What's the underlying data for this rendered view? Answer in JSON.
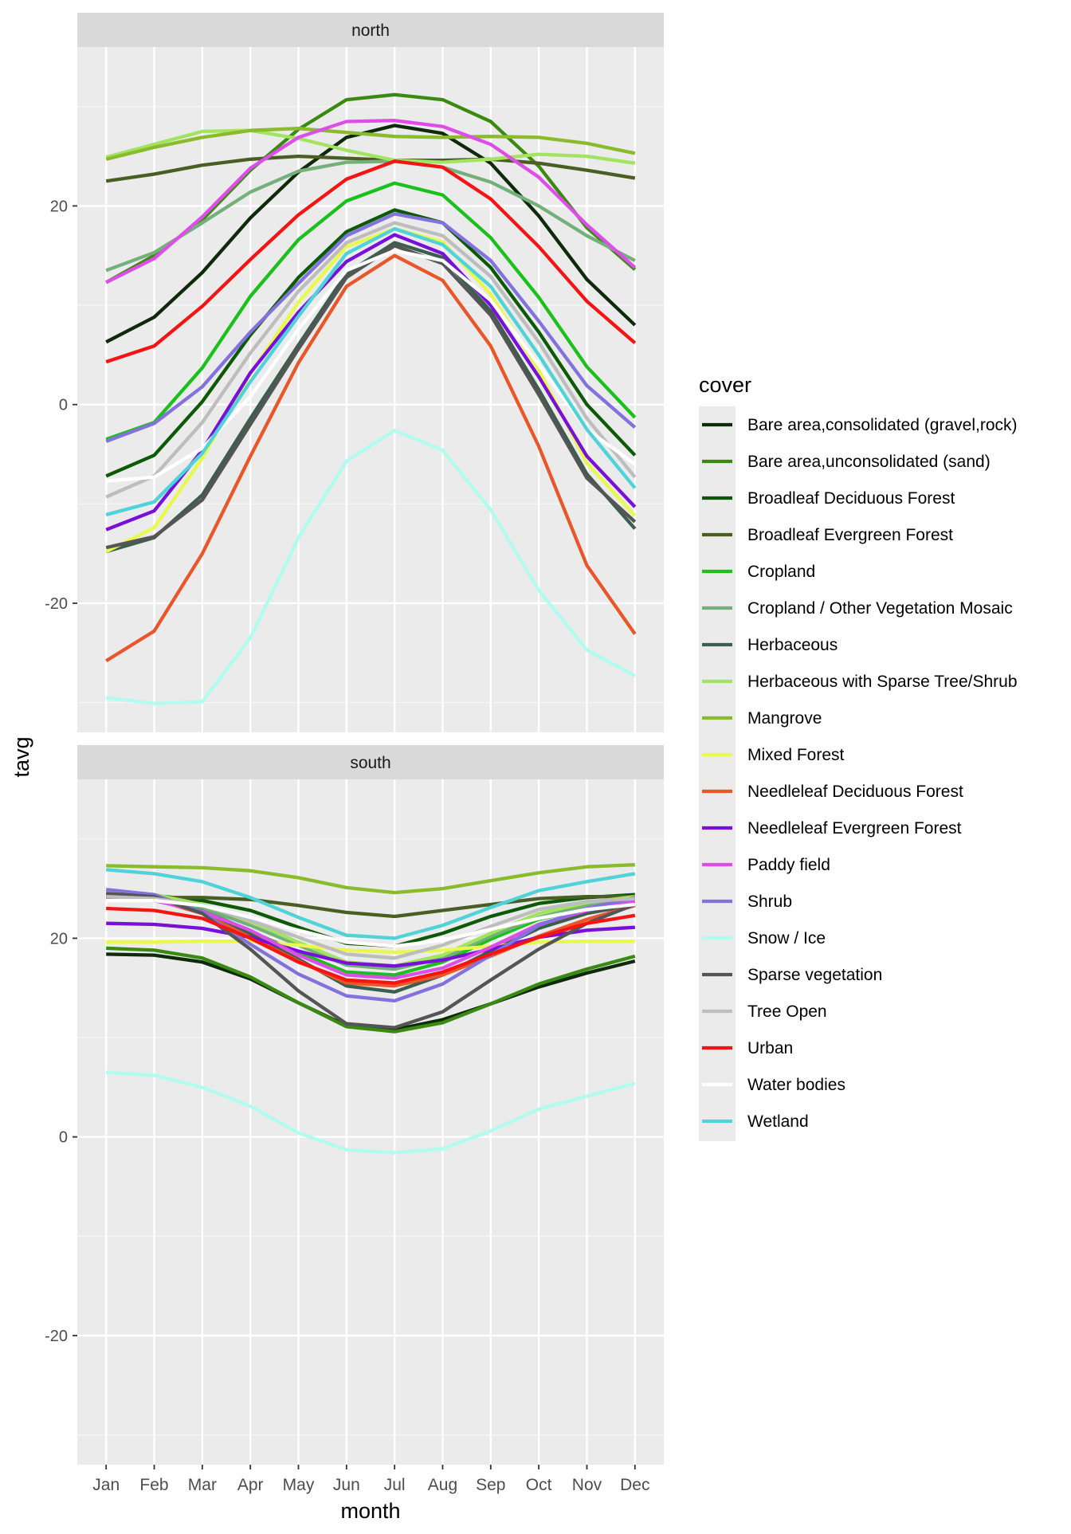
{
  "chart_data": {
    "type": "line",
    "xlabel": "month",
    "ylabel": "tavg",
    "ylim": [
      -33,
      36
    ],
    "yticks": [
      -20,
      0,
      20
    ],
    "categories": [
      "Jan",
      "Feb",
      "Mar",
      "Apr",
      "May",
      "Jun",
      "Jul",
      "Aug",
      "Sep",
      "Oct",
      "Nov",
      "Dec"
    ],
    "legend": {
      "title": "cover",
      "position": "right"
    },
    "grid": true,
    "panels": [
      {
        "name": "north",
        "series": [
          {
            "name": "Bare area,consolidated (gravel,rock)",
            "color": "#0f2a0a",
            "values": [
              6.3,
              8.8,
              13.3,
              18.8,
              23.4,
              26.9,
              28.1,
              27.3,
              24.3,
              19.0,
              12.6,
              8.0
            ]
          },
          {
            "name": "Bare area,unconsolidated (sand)",
            "color": "#3a8a12",
            "values": [
              12.3,
              15.0,
              18.6,
              23.6,
              27.7,
              30.7,
              31.2,
              30.7,
              28.5,
              24.0,
              17.8,
              13.6
            ]
          },
          {
            "name": "Broadleaf Deciduous Forest",
            "color": "#0b5a06",
            "values": [
              -7.2,
              -5.1,
              0.3,
              7.0,
              12.8,
              17.4,
              19.6,
              18.3,
              13.8,
              7.3,
              0.0,
              -5.1
            ]
          },
          {
            "name": "Broadleaf Evergreen Forest",
            "color": "#4a5e24",
            "values": [
              22.5,
              23.2,
              24.1,
              24.7,
              25.0,
              24.8,
              24.6,
              24.6,
              24.7,
              24.3,
              23.6,
              22.8
            ]
          },
          {
            "name": "Cropland",
            "color": "#1cc01c",
            "values": [
              -3.5,
              -1.8,
              3.7,
              10.9,
              16.6,
              20.5,
              22.3,
              21.1,
              16.8,
              10.8,
              3.8,
              -1.3
            ]
          },
          {
            "name": "Cropland / Other Vegetation Mosaic",
            "color": "#73b07a",
            "values": [
              13.5,
              15.3,
              18.3,
              21.4,
              23.5,
              24.4,
              24.5,
              23.9,
              22.4,
              20.0,
              17.0,
              14.5
            ]
          },
          {
            "name": "Herbaceous",
            "color": "#3d5e4e",
            "values": [
              -14.8,
              -13.4,
              -9.1,
              -1.4,
              6.0,
              13.2,
              16.3,
              14.8,
              9.4,
              1.5,
              -7.0,
              -12.5
            ]
          },
          {
            "name": "Herbaceous with Sparse Tree/Shrub",
            "color": "#a2e360",
            "values": [
              24.9,
              26.2,
              27.5,
              27.6,
              26.8,
              25.6,
              24.6,
              24.4,
              24.7,
              25.2,
              25.0,
              24.3
            ]
          },
          {
            "name": "Mangrove",
            "color": "#8abb2c",
            "values": [
              24.7,
              25.9,
              26.9,
              27.6,
              27.8,
              27.4,
              27.0,
              26.9,
              27.0,
              26.9,
              26.3,
              25.3
            ]
          },
          {
            "name": "Mixed Forest",
            "color": "#e8f84e",
            "values": [
              -14.8,
              -12.4,
              -5.4,
              3.1,
              10.3,
              15.9,
              17.7,
              16.4,
              11.1,
              3.5,
              -5.9,
              -11.2
            ]
          },
          {
            "name": "Needleleaf Deciduous Forest",
            "color": "#e8562a",
            "values": [
              -25.8,
              -22.8,
              -15.0,
              -5.2,
              4.2,
              11.9,
              15.0,
              12.5,
              5.9,
              -4.2,
              -16.2,
              -23.1
            ]
          },
          {
            "name": "Needleleaf Evergreen Forest",
            "color": "#7910d8",
            "values": [
              -12.6,
              -10.7,
              -4.6,
              3.2,
              9.3,
              14.4,
              17.1,
              15.2,
              10.0,
              2.8,
              -5.2,
              -10.3
            ]
          },
          {
            "name": "Paddy field",
            "color": "#dd4ee8",
            "values": [
              12.3,
              14.7,
              18.9,
              23.8,
              26.9,
              28.5,
              28.6,
              28.0,
              26.2,
              22.9,
              18.1,
              13.8
            ]
          },
          {
            "name": "Shrub",
            "color": "#8372dc",
            "values": [
              -3.7,
              -1.9,
              1.8,
              7.3,
              12.2,
              17.0,
              19.2,
              18.3,
              14.5,
              8.4,
              1.9,
              -2.3
            ]
          },
          {
            "name": "Snow / Ice",
            "color": "#b0fcee",
            "values": [
              -29.5,
              -30.1,
              -29.9,
              -23.5,
              -13.4,
              -5.7,
              -2.6,
              -4.6,
              -10.6,
              -18.7,
              -24.7,
              -27.3
            ]
          },
          {
            "name": "Sparse vegetation",
            "color": "#555555",
            "values": [
              -14.4,
              -13.3,
              -9.6,
              -2.0,
              5.6,
              12.8,
              16.0,
              14.2,
              9.0,
              1.0,
              -7.4,
              -11.8
            ]
          },
          {
            "name": "Tree Open",
            "color": "#bdbdbd",
            "values": [
              -9.3,
              -7.2,
              -1.8,
              5.2,
              11.4,
              16.3,
              18.3,
              17.0,
              12.9,
              6.3,
              -1.4,
              -7.3
            ]
          },
          {
            "name": "Urban",
            "color": "#f51414",
            "values": [
              4.3,
              5.9,
              9.9,
              14.6,
              19.1,
              22.7,
              24.5,
              23.9,
              20.7,
              15.9,
              10.4,
              6.2
            ]
          },
          {
            "name": "Water bodies",
            "color": "#ffffff",
            "values": [
              -7.7,
              -7.3,
              -4.4,
              0.8,
              7.6,
              13.5,
              15.5,
              14.5,
              10.5,
              4.0,
              -2.5,
              -6.0
            ]
          },
          {
            "name": "Wetland",
            "color": "#4fd2d8",
            "values": [
              -11.1,
              -9.8,
              -4.9,
              2.3,
              8.9,
              15.2,
              17.7,
              16.1,
              11.9,
              5.0,
              -2.5,
              -8.4
            ]
          }
        ]
      },
      {
        "name": "south",
        "series": [
          {
            "name": "Bare area,consolidated (gravel,rock)",
            "color": "#0f2a0a",
            "values": [
              18.4,
              18.3,
              17.6,
              15.9,
              13.5,
              11.2,
              10.8,
              11.8,
              13.4,
              15.1,
              16.5,
              17.7
            ]
          },
          {
            "name": "Bare area,unconsolidated (sand)",
            "color": "#3a8a12",
            "values": [
              19.0,
              18.8,
              18.0,
              16.1,
              13.5,
              11.1,
              10.6,
              11.5,
              13.4,
              15.4,
              16.9,
              18.2
            ]
          },
          {
            "name": "Broadleaf Deciduous Forest",
            "color": "#0b5a06",
            "values": [
              24.5,
              24.3,
              23.8,
              22.8,
              21.1,
              19.5,
              19.2,
              20.5,
              22.2,
              23.5,
              24.1,
              24.4
            ]
          },
          {
            "name": "Broadleaf Evergreen Forest",
            "color": "#4a5e24",
            "values": [
              24.0,
              24.1,
              24.1,
              23.9,
              23.3,
              22.6,
              22.2,
              22.8,
              23.4,
              24.0,
              24.2,
              24.2
            ]
          },
          {
            "name": "Cropland",
            "color": "#1cc01c",
            "values": [
              24.2,
              23.9,
              22.9,
              20.7,
              18.6,
              16.6,
              16.3,
              17.6,
              19.9,
              21.9,
              23.0,
              23.6
            ]
          },
          {
            "name": "Cropland / Other Vegetation Mosaic",
            "color": "#73b07a",
            "values": [
              24.5,
              24.2,
              23.1,
              21.3,
              19.3,
              17.3,
              16.9,
              18.0,
              20.2,
              22.1,
              23.3,
              24.0
            ]
          },
          {
            "name": "Herbaceous",
            "color": "#3d5e4e",
            "values": [
              24.3,
              23.9,
              22.7,
              20.4,
              17.9,
              15.2,
              14.6,
              16.3,
              18.7,
              21.0,
              22.5,
              23.4
            ]
          },
          {
            "name": "Herbaceous with Sparse Tree/Shrub",
            "color": "#a2e360",
            "values": [
              24.7,
              24.4,
              23.4,
              21.7,
              19.6,
              17.6,
              17.2,
              18.3,
              20.5,
              22.5,
              23.6,
              24.2
            ]
          },
          {
            "name": "Mangrove",
            "color": "#8abb2c",
            "values": [
              27.3,
              27.2,
              27.1,
              26.8,
              26.1,
              25.1,
              24.6,
              25.0,
              25.8,
              26.6,
              27.2,
              27.4
            ]
          },
          {
            "name": "Mixed Forest",
            "color": "#e8f84e",
            "values": [
              19.6,
              19.6,
              19.7,
              19.7,
              19.3,
              18.8,
              18.6,
              18.8,
              19.2,
              19.6,
              19.7,
              19.7
            ]
          },
          {
            "name": "Needleleaf Deciduous Forest",
            "color": "#e8562a",
            "values": [
              24.0,
              23.9,
              22.5,
              20.1,
              17.7,
              15.5,
              15.2,
              16.3,
              18.2,
              20.2,
              21.9,
              23.3
            ]
          },
          {
            "name": "Needleleaf Evergreen Forest",
            "color": "#7910d8",
            "values": [
              21.5,
              21.4,
              21.0,
              20.1,
              18.7,
              17.5,
              17.2,
              17.8,
              18.9,
              20.1,
              20.8,
              21.1
            ]
          },
          {
            "name": "Paddy field",
            "color": "#dd4ee8",
            "values": [
              24.1,
              23.8,
              22.7,
              20.8,
              18.3,
              16.3,
              16.0,
              17.0,
              19.1,
              21.4,
              22.8,
              23.7
            ]
          },
          {
            "name": "Shrub",
            "color": "#8372dc",
            "values": [
              24.9,
              24.4,
              22.6,
              19.4,
              16.4,
              14.2,
              13.7,
              15.4,
              18.3,
              21.3,
              23.0,
              24.1
            ]
          },
          {
            "name": "Snow / Ice",
            "color": "#b0fcee",
            "values": [
              6.5,
              6.2,
              5.0,
              3.1,
              0.4,
              -1.3,
              -1.6,
              -1.2,
              0.6,
              2.8,
              4.1,
              5.4
            ]
          },
          {
            "name": "Sparse vegetation",
            "color": "#555555",
            "values": [
              24.5,
              24.2,
              22.5,
              18.9,
              14.7,
              11.4,
              11.0,
              12.6,
              15.8,
              18.9,
              21.5,
              23.4
            ]
          },
          {
            "name": "Tree Open",
            "color": "#bdbdbd",
            "values": [
              24.2,
              24.0,
              23.3,
              21.8,
              20.1,
              18.4,
              18.0,
              19.3,
              21.2,
              22.9,
              23.7,
              24.0
            ]
          },
          {
            "name": "Urban",
            "color": "#f51414",
            "values": [
              23.0,
              22.8,
              22.0,
              20.0,
              17.6,
              15.8,
              15.5,
              16.6,
              18.4,
              20.1,
              21.5,
              22.3
            ]
          },
          {
            "name": "Water bodies",
            "color": "#ffffff",
            "values": [
              23.8,
              23.8,
              23.3,
              22.1,
              20.8,
              19.6,
              19.2,
              19.8,
              20.9,
              22.0,
              22.9,
              23.4
            ]
          },
          {
            "name": "Wetland",
            "color": "#4fd2d8",
            "values": [
              26.9,
              26.5,
              25.7,
              24.1,
              22.1,
              20.3,
              20.0,
              21.3,
              23.1,
              24.8,
              25.7,
              26.5
            ]
          }
        ]
      }
    ]
  }
}
